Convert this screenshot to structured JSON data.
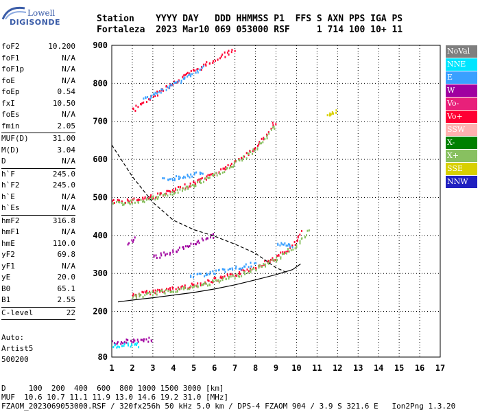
{
  "logo": {
    "line1": "Lowell",
    "line2": "DIGISONDE"
  },
  "header": {
    "line1": "Station    YYYY DAY   DDD HHMMSS P1  FFS S AXN PPS IGA PS",
    "line2": "Fortaleza  2023 Mar10 069 053000 RSF     1 714 100 10+ 11"
  },
  "params": [
    {
      "k": "foF2",
      "v": "10.200"
    },
    {
      "k": "foF1",
      "v": "N/A"
    },
    {
      "k": "foF1p",
      "v": "N/A"
    },
    {
      "k": "foE",
      "v": "N/A"
    },
    {
      "k": "foEp",
      "v": "0.54"
    },
    {
      "k": "fxI",
      "v": "10.50"
    },
    {
      "k": "foEs",
      "v": "N/A"
    },
    {
      "k": "fmin",
      "v": "2.05"
    },
    {
      "sep": true
    },
    {
      "k": "MUF(D)",
      "v": "31.00"
    },
    {
      "k": "M(D)",
      "v": "3.04"
    },
    {
      "k": "D",
      "v": "N/A"
    },
    {
      "sep": true
    },
    {
      "k": "h`F",
      "v": "245.0"
    },
    {
      "k": "h`F2",
      "v": "245.0"
    },
    {
      "k": "h`E",
      "v": "N/A"
    },
    {
      "k": "h`Es",
      "v": "N/A"
    },
    {
      "sep": true
    },
    {
      "k": "hmF2",
      "v": "316.8"
    },
    {
      "k": "hmF1",
      "v": "N/A"
    },
    {
      "k": "hmE",
      "v": "110.0"
    },
    {
      "k": "yF2",
      "v": "69.8"
    },
    {
      "k": "yF1",
      "v": "N/A"
    },
    {
      "k": "yE",
      "v": "20.0"
    },
    {
      "k": "B0",
      "v": "65.1"
    },
    {
      "k": "B1",
      "v": "2.55"
    },
    {
      "sep": true
    },
    {
      "k": "C-level",
      "v": "22"
    },
    {
      "sep": true
    }
  ],
  "auto": {
    "line1": "Auto:",
    "line2": "Artist5",
    "line3": "500200"
  },
  "legend": [
    {
      "label": "NoVal",
      "color": "#7f7f7f"
    },
    {
      "label": "NNE",
      "color": "#00e5ff"
    },
    {
      "label": "E",
      "color": "#3aa0ff"
    },
    {
      "label": "W",
      "color": "#a000a0"
    },
    {
      "label": "Vo-",
      "color": "#e8207a"
    },
    {
      "label": "Vo+",
      "color": "#ff0033"
    },
    {
      "label": "SSW",
      "color": "#ffb0b0"
    },
    {
      "label": "X-",
      "color": "#008000"
    },
    {
      "label": "X+",
      "color": "#88c060"
    },
    {
      "label": "SSE",
      "color": "#d8d000"
    },
    {
      "label": "NNW",
      "color": "#2020c0"
    }
  ],
  "footer": {
    "line1": "D     100  200  400  600  800 1000 1500 3000 [km]",
    "line2": "MUF  10.6 10.7 11.1 11.9 13.0 14.6 19.2 31.0 [MHz]",
    "line3": "FZAOM_2023069053000.RSF / 320fx256h 50 kHz 5.0 km / DPS-4 FZAOM 904 / 3.9 S 321.6 E   Ion2Png 1.3.20"
  },
  "chart_data": {
    "type": "scatter",
    "x_ticks": [
      "1",
      "2",
      "3",
      "4",
      "5",
      "6",
      "7",
      "8",
      "9",
      "10",
      "11",
      "12",
      "13",
      "14",
      "15",
      "16",
      "17"
    ],
    "y_ticks": [
      "80",
      "200",
      "300",
      "400",
      "500",
      "600",
      "700",
      "800",
      "900"
    ],
    "xlim": [
      1,
      17
    ],
    "ylim": [
      80,
      900
    ],
    "grid": true,
    "series": [
      {
        "name": "Vo+",
        "color": "#ff0033",
        "traces": [
          [
            [
              2.0,
              245
            ],
            [
              3.0,
              255
            ],
            [
              4.0,
              262
            ],
            [
              5.0,
              272
            ],
            [
              6.0,
              285
            ],
            [
              7.0,
              300
            ],
            [
              8.0,
              320
            ],
            [
              9.0,
              345
            ],
            [
              9.5,
              362
            ],
            [
              10.0,
              385
            ],
            [
              10.2,
              415
            ]
          ],
          [
            [
              1.0,
              490
            ],
            [
              2.0,
              495
            ],
            [
              3.0,
              505
            ],
            [
              4.0,
              520
            ],
            [
              5.0,
              540
            ],
            [
              6.0,
              565
            ],
            [
              7.0,
              595
            ],
            [
              8.0,
              635
            ],
            [
              8.5,
              665
            ],
            [
              9.0,
              705
            ]
          ],
          [
            [
              2.0,
              730
            ],
            [
              3.0,
              770
            ],
            [
              4.0,
              805
            ],
            [
              5.0,
              835
            ],
            [
              6.0,
              865
            ],
            [
              7.0,
              893
            ]
          ]
        ]
      },
      {
        "name": "X+",
        "color": "#88c060",
        "traces": [
          [
            [
              2.0,
              240
            ],
            [
              3.0,
              250
            ],
            [
              4.0,
              258
            ],
            [
              5.0,
              267
            ],
            [
              6.0,
              280
            ],
            [
              7.0,
              295
            ],
            [
              8.0,
              315
            ],
            [
              9.0,
              340
            ],
            [
              10.0,
              378
            ],
            [
              10.7,
              420
            ]
          ],
          [
            [
              1.1,
              485
            ],
            [
              2.0,
              490
            ],
            [
              3.0,
              500
            ],
            [
              4.0,
              515
            ],
            [
              5.0,
              535
            ],
            [
              6.0,
              560
            ],
            [
              7.0,
              590
            ],
            [
              8.0,
              630
            ],
            [
              9.0,
              695
            ]
          ]
        ]
      },
      {
        "name": "E",
        "color": "#3aa0ff",
        "traces": [
          [
            [
              3.5,
              550
            ],
            [
              4.0,
              553
            ],
            [
              4.5,
              557
            ],
            [
              5.0,
              562
            ],
            [
              5.5,
              567
            ]
          ],
          [
            [
              4.8,
              295
            ],
            [
              5.2,
              298
            ],
            [
              7.5,
              320
            ],
            [
              8.0,
              330
            ]
          ],
          [
            [
              9.0,
              375
            ],
            [
              9.5,
              380
            ],
            [
              9.8,
              370
            ]
          ],
          [
            [
              2.5,
              760
            ],
            [
              3.5,
              785
            ],
            [
              4.5,
              815
            ],
            [
              5.5,
              845
            ]
          ]
        ]
      },
      {
        "name": "W",
        "color": "#a000a0",
        "traces": [
          [
            [
              3.0,
              345
            ],
            [
              4.0,
              360
            ],
            [
              5.0,
              378
            ],
            [
              5.5,
              392
            ],
            [
              6.0,
              405
            ]
          ],
          [
            [
              1.0,
              120
            ],
            [
              1.5,
              122
            ],
            [
              2.0,
              125
            ],
            [
              2.5,
              127
            ],
            [
              3.0,
              130
            ]
          ],
          [
            [
              1.8,
              380
            ],
            [
              2.2,
              395
            ]
          ]
        ]
      },
      {
        "name": "NNE",
        "color": "#00e5ff",
        "traces": [
          [
            [
              1.0,
              110
            ],
            [
              1.5,
              112
            ],
            [
              2.0,
              115
            ],
            [
              2.3,
              113
            ]
          ]
        ]
      },
      {
        "name": "SSE",
        "color": "#d8d000",
        "traces": [
          [
            [
              11.5,
              722
            ],
            [
              11.7,
              725
            ],
            [
              11.9,
              730
            ]
          ]
        ]
      }
    ],
    "model_curves": [
      {
        "name": "profile",
        "style": "solid",
        "points": [
          [
            1.3,
            225
          ],
          [
            2.0,
            230
          ],
          [
            3.0,
            236
          ],
          [
            4.0,
            243
          ],
          [
            5.0,
            250
          ],
          [
            6.0,
            259
          ],
          [
            7.0,
            270
          ],
          [
            8.0,
            283
          ],
          [
            9.0,
            297
          ],
          [
            9.8,
            310
          ],
          [
            10.2,
            325
          ]
        ]
      },
      {
        "name": "model",
        "style": "dashed",
        "points": [
          [
            1.0,
            638
          ],
          [
            2.0,
            555
          ],
          [
            3.0,
            487
          ],
          [
            4.0,
            440
          ],
          [
            5.0,
            415
          ],
          [
            6.0,
            398
          ],
          [
            7.0,
            377
          ],
          [
            8.0,
            353
          ],
          [
            9.0,
            315
          ],
          [
            9.5,
            303
          ]
        ]
      }
    ]
  }
}
